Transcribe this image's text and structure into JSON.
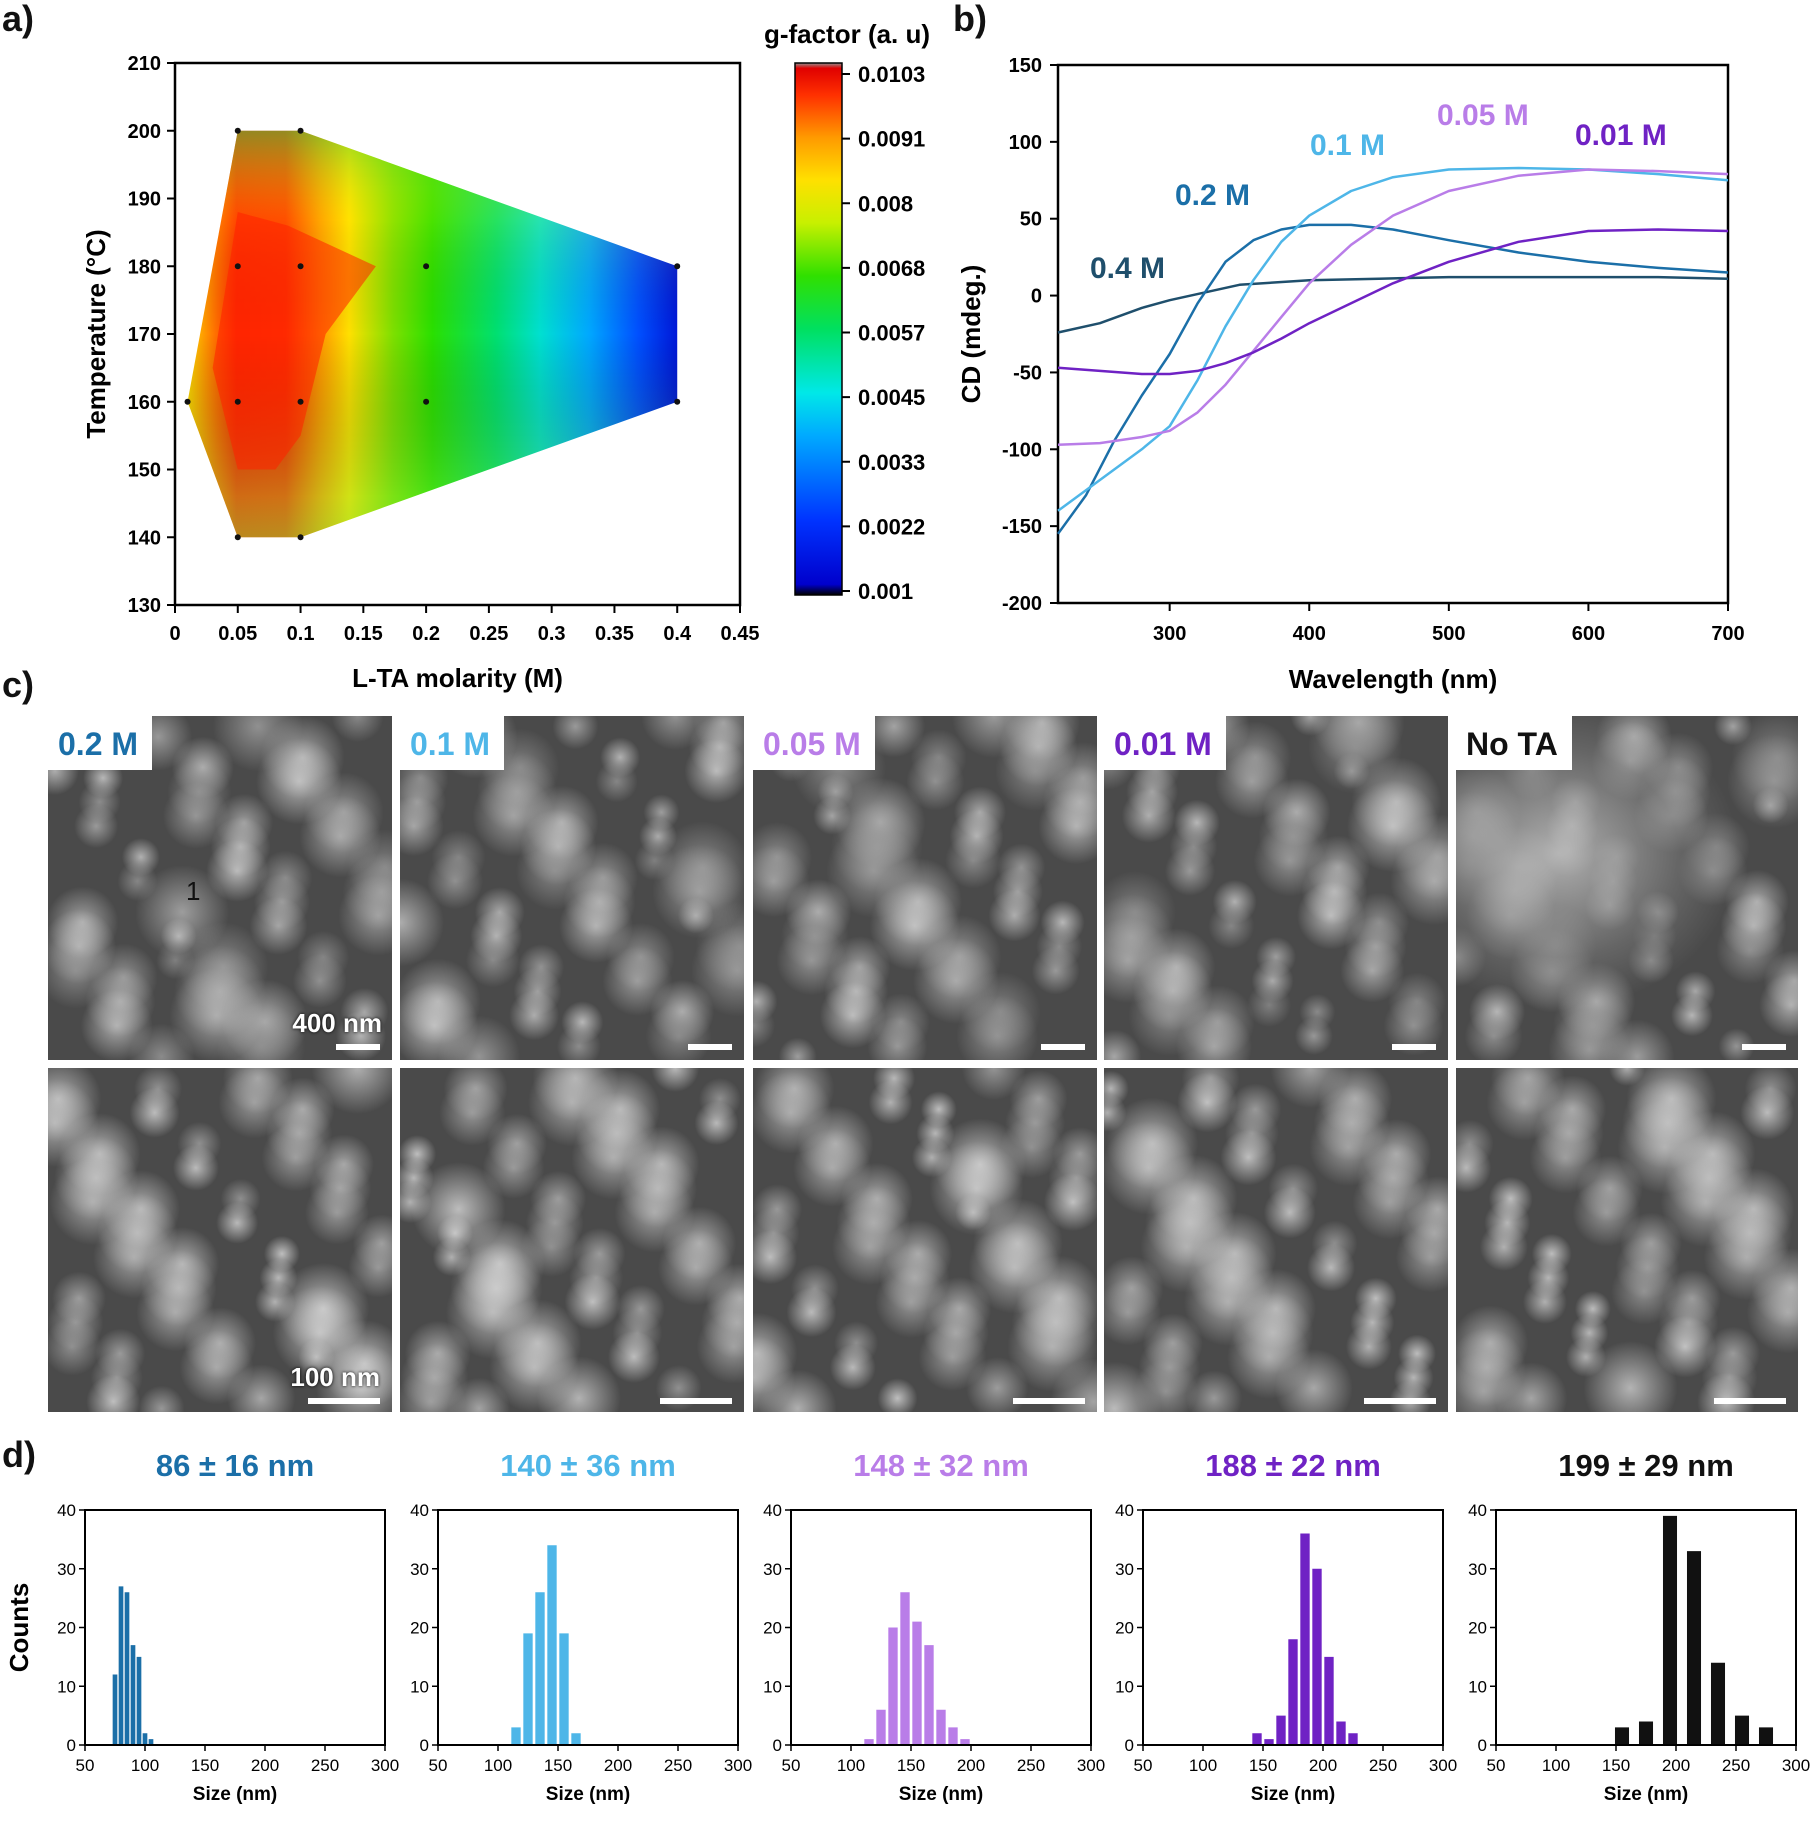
{
  "panels": {
    "a": "a)",
    "b": "b)",
    "c": "c)",
    "d": "d)"
  },
  "colors": {
    "c02": "#1b6fa8",
    "c01": "#4eb6e8",
    "c005": "#b97de8",
    "c001": "#6f22c4",
    "cnota": "#111111",
    "c04": "#1f4f6c"
  },
  "chart_data": [
    {
      "type": "heatmap",
      "xlabel": "L-TA molarity (M)",
      "ylabel": "Temperature (°C)",
      "xlim": [
        0,
        0.45
      ],
      "ylim": [
        130,
        210
      ],
      "xticks": [
        "0",
        "0.05",
        "0.1",
        "0.15",
        "0.2",
        "0.25",
        "0.3",
        "0.35",
        "0.4",
        "0.45"
      ],
      "yticks": [
        "130",
        "140",
        "150",
        "160",
        "170",
        "180",
        "190",
        "200",
        "210"
      ],
      "colorbar": {
        "title": "g-factor (a. u)",
        "ticks": [
          "0.0103",
          "0.0091",
          "0.008",
          "0.0068",
          "0.0057",
          "0.0045",
          "0.0033",
          "0.0022",
          "0.001"
        ],
        "range": [
          0.001,
          0.0103
        ]
      },
      "points": [
        {
          "x": 0.05,
          "y": 200,
          "g": 0.0062
        },
        {
          "x": 0.1,
          "y": 200,
          "g": 0.0062
        },
        {
          "x": 0.05,
          "y": 180,
          "g": 0.0101
        },
        {
          "x": 0.1,
          "y": 180,
          "g": 0.0103
        },
        {
          "x": 0.2,
          "y": 180,
          "g": 0.0062
        },
        {
          "x": 0.4,
          "y": 180,
          "g": 0.0012
        },
        {
          "x": 0.01,
          "y": 160,
          "g": 0.0076
        },
        {
          "x": 0.05,
          "y": 160,
          "g": 0.0097
        },
        {
          "x": 0.1,
          "y": 160,
          "g": 0.0091
        },
        {
          "x": 0.2,
          "y": 160,
          "g": 0.0045
        },
        {
          "x": 0.4,
          "y": 160,
          "g": 0.0012
        },
        {
          "x": 0.05,
          "y": 140,
          "g": 0.0066
        },
        {
          "x": 0.1,
          "y": 140,
          "g": 0.0066
        }
      ]
    },
    {
      "type": "line",
      "xlabel": "Wavelength (nm)",
      "ylabel": "CD (mdeg.)",
      "xlim": [
        220,
        700
      ],
      "ylim": [
        -200,
        150
      ],
      "xticks": [
        "300",
        "400",
        "500",
        "600",
        "700"
      ],
      "yticks": [
        "150",
        "100",
        "50",
        "0",
        "-50",
        "-100",
        "-150",
        "-200"
      ],
      "series": [
        {
          "name": "0.4 M",
          "color": "#1f4f6c",
          "x": [
            220,
            250,
            280,
            300,
            350,
            400,
            450,
            500,
            550,
            600,
            650,
            700
          ],
          "y": [
            -24,
            -18,
            -8,
            -3,
            7,
            10,
            11,
            12,
            12,
            12,
            12,
            11
          ]
        },
        {
          "name": "0.2 M",
          "color": "#1b6fa8",
          "x": [
            220,
            240,
            260,
            280,
            300,
            320,
            340,
            360,
            380,
            400,
            430,
            460,
            500,
            550,
            600,
            650,
            700
          ],
          "y": [
            -155,
            -130,
            -95,
            -65,
            -38,
            -5,
            22,
            36,
            43,
            46,
            46,
            43,
            36,
            28,
            22,
            18,
            15
          ]
        },
        {
          "name": "0.1 M",
          "color": "#4eb6e8",
          "x": [
            220,
            250,
            280,
            300,
            320,
            340,
            360,
            380,
            400,
            430,
            460,
            500,
            550,
            600,
            650,
            700
          ],
          "y": [
            -140,
            -120,
            -100,
            -85,
            -55,
            -20,
            10,
            35,
            52,
            68,
            77,
            82,
            83,
            82,
            79,
            75
          ]
        },
        {
          "name": "0.05 M",
          "color": "#b97de8",
          "x": [
            220,
            250,
            280,
            300,
            320,
            340,
            360,
            380,
            400,
            430,
            460,
            500,
            550,
            600,
            650,
            700
          ],
          "y": [
            -97,
            -96,
            -92,
            -88,
            -76,
            -58,
            -36,
            -14,
            8,
            33,
            52,
            68,
            78,
            82,
            81,
            79
          ]
        },
        {
          "name": "0.01 M",
          "color": "#6f22c4",
          "x": [
            220,
            250,
            280,
            300,
            320,
            340,
            360,
            380,
            400,
            430,
            460,
            500,
            550,
            600,
            650,
            700
          ],
          "y": [
            -47,
            -49,
            -51,
            -51,
            -49,
            -44,
            -37,
            -28,
            -18,
            -5,
            8,
            22,
            35,
            42,
            43,
            42
          ]
        }
      ]
    },
    {
      "type": "bar",
      "title": "86 ± 16 nm",
      "color": "#1b6fa8",
      "xlabel": "Size (nm)",
      "ylabel": "Counts",
      "xlim": [
        50,
        300
      ],
      "ylim": [
        0,
        40
      ],
      "binwidth": 5,
      "xticks": [
        "50",
        "100",
        "150",
        "200",
        "250",
        "300"
      ],
      "yticks": [
        "0",
        "10",
        "20",
        "30",
        "40"
      ],
      "x": [
        75,
        80,
        85,
        90,
        95,
        100,
        105
      ],
      "values": [
        12,
        27,
        26,
        17,
        15,
        2,
        1
      ]
    },
    {
      "type": "bar",
      "title": "140 ± 36 nm",
      "color": "#4eb6e8",
      "xlabel": "Size (nm)",
      "ylabel": "Counts",
      "xlim": [
        50,
        300
      ],
      "ylim": [
        0,
        40
      ],
      "binwidth": 10,
      "xticks": [
        "50",
        "100",
        "150",
        "200",
        "250",
        "300"
      ],
      "yticks": [
        "0",
        "10",
        "20",
        "30",
        "40"
      ],
      "x": [
        115,
        125,
        135,
        145,
        155,
        165
      ],
      "values": [
        3,
        19,
        26,
        34,
        19,
        2
      ]
    },
    {
      "type": "bar",
      "title": "148 ± 32 nm",
      "color": "#b97de8",
      "xlabel": "Size (nm)",
      "ylabel": "Counts",
      "xlim": [
        50,
        300
      ],
      "ylim": [
        0,
        40
      ],
      "binwidth": 10,
      "xticks": [
        "50",
        "100",
        "150",
        "200",
        "250",
        "300"
      ],
      "yticks": [
        "0",
        "10",
        "20",
        "30",
        "40"
      ],
      "x": [
        115,
        125,
        135,
        145,
        155,
        165,
        175,
        185,
        195
      ],
      "values": [
        1,
        6,
        20,
        26,
        21,
        17,
        6,
        3,
        1
      ]
    },
    {
      "type": "bar",
      "title": "188 ± 22 nm",
      "color": "#6f22c4",
      "xlabel": "Size (nm)",
      "ylabel": "Counts",
      "xlim": [
        50,
        300
      ],
      "ylim": [
        0,
        40
      ],
      "binwidth": 10,
      "xticks": [
        "50",
        "100",
        "150",
        "200",
        "250",
        "300"
      ],
      "yticks": [
        "0",
        "10",
        "20",
        "30",
        "40"
      ],
      "x": [
        145,
        155,
        165,
        175,
        185,
        195,
        205,
        215,
        225
      ],
      "values": [
        2,
        1,
        5,
        18,
        36,
        30,
        15,
        4,
        2
      ]
    },
    {
      "type": "bar",
      "title": "199 ± 29 nm",
      "color": "#111111",
      "xlabel": "Size (nm)",
      "ylabel": "Counts",
      "xlim": [
        50,
        300
      ],
      "ylim": [
        0,
        40
      ],
      "binwidth": 15,
      "xticks": [
        "50",
        "100",
        "150",
        "200",
        "250",
        "300"
      ],
      "yticks": [
        "0",
        "10",
        "20",
        "30",
        "40"
      ],
      "x": [
        155,
        175,
        195,
        215,
        235,
        255,
        275
      ],
      "values": [
        3,
        4,
        39,
        33,
        14,
        5,
        3
      ]
    }
  ],
  "sem": {
    "labels": [
      "0.2 M",
      "0.1 M",
      "0.05 M",
      "0.01 M",
      "No TA"
    ],
    "scale_top": "400 nm",
    "scale_bottom": "100 nm",
    "marker": "1"
  }
}
